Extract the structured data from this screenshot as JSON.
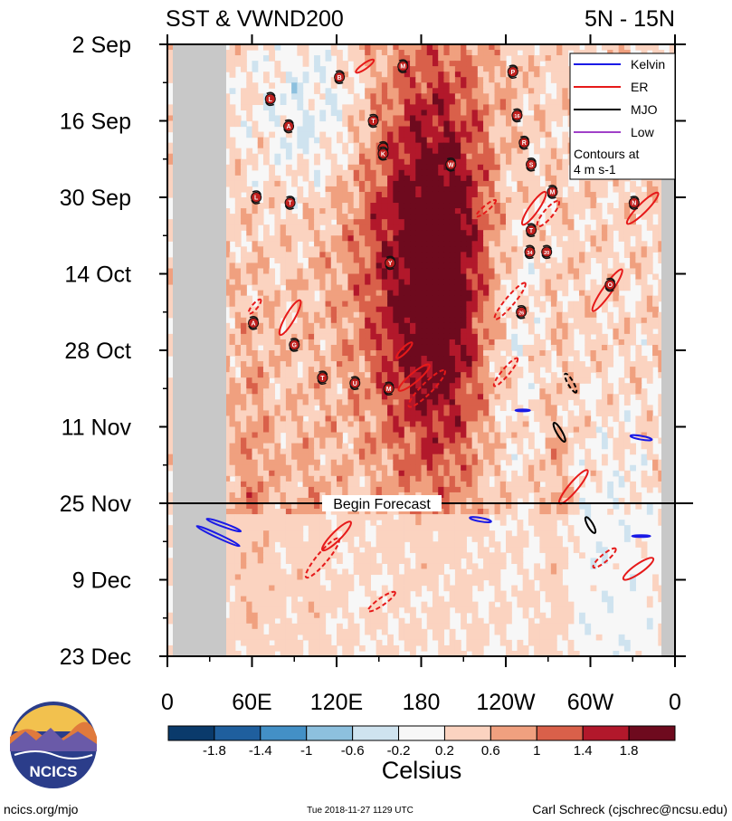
{
  "chart_data": {
    "type": "heatmap",
    "title": "SST & VWND200",
    "region": "5N - 15N",
    "y_ticks": [
      "2 Sep",
      "16 Sep",
      "30 Sep",
      "14 Oct",
      "28 Oct",
      "11 Nov",
      "25 Nov",
      "9 Dec",
      "23 Dec"
    ],
    "x_ticks": [
      "0",
      "60E",
      "120E",
      "180",
      "120W",
      "60W",
      "0"
    ],
    "x_range": [
      0,
      360
    ],
    "y_range_days": [
      0,
      112
    ],
    "forecast_label": "Begin Forecast",
    "forecast_day": 84,
    "colorbar": {
      "label": "Celsius",
      "ticks": [
        "-1.8",
        "-1.4",
        "-1",
        "-0.6",
        "-0.2",
        "0.2",
        "0.6",
        "1",
        "1.4",
        "1.8"
      ],
      "colors": [
        "#0a3a6b",
        "#1f5f9e",
        "#4390c6",
        "#8dc0de",
        "#cfe3ef",
        "#f7f7f7",
        "#fbd3c0",
        "#f0a07f",
        "#d9604a",
        "#b2182b",
        "#6e0a1e"
      ]
    },
    "legend": {
      "items": [
        {
          "name": "Kelvin",
          "color": "#1a1ae6"
        },
        {
          "name": "ER",
          "color": "#e61a1a"
        },
        {
          "name": "MJO",
          "color": "#000000"
        },
        {
          "name": "Low",
          "color": "#a040c8"
        }
      ],
      "note_line1": "Contours at",
      "note_line2": "4 m s-1"
    },
    "storms": [
      {
        "label": "B",
        "lon": 122,
        "day": 6
      },
      {
        "label": "M",
        "lon": 167,
        "day": 4
      },
      {
        "label": "P",
        "lon": 245,
        "day": 5
      },
      {
        "label": "L",
        "lon": 73,
        "day": 10
      },
      {
        "label": "A",
        "lon": 86,
        "day": 15
      },
      {
        "label": "T",
        "lon": 146,
        "day": 14
      },
      {
        "label": "16",
        "lon": 248,
        "day": 13
      },
      {
        "label": "28",
        "lon": 153,
        "day": 19
      },
      {
        "label": "K",
        "lon": 153,
        "day": 20
      },
      {
        "label": "R",
        "lon": 253,
        "day": 18
      },
      {
        "label": "W",
        "lon": 201,
        "day": 22
      },
      {
        "label": "S",
        "lon": 258,
        "day": 22
      },
      {
        "label": "L",
        "lon": 63,
        "day": 28
      },
      {
        "label": "T",
        "lon": 87,
        "day": 29
      },
      {
        "label": "M",
        "lon": 273,
        "day": 27
      },
      {
        "label": "N",
        "lon": 331,
        "day": 29
      },
      {
        "label": "T",
        "lon": 258,
        "day": 34
      },
      {
        "label": "34",
        "lon": 257,
        "day": 38
      },
      {
        "label": "20",
        "lon": 269,
        "day": 38
      },
      {
        "label": "Y",
        "lon": 158,
        "day": 40
      },
      {
        "label": "O",
        "lon": 314,
        "day": 44
      },
      {
        "label": "26",
        "lon": 251,
        "day": 49
      },
      {
        "label": "A",
        "lon": 61,
        "day": 51
      },
      {
        "label": "G",
        "lon": 90,
        "day": 55
      },
      {
        "label": "T",
        "lon": 110,
        "day": 61
      },
      {
        "label": "U",
        "lon": 133,
        "day": 62
      },
      {
        "label": "M",
        "lon": 157,
        "day": 63
      }
    ]
  },
  "footer": {
    "logo_text": "NCICS",
    "site": "ncics.org/mjo",
    "timestamp": "Tue 2018-11-27 1129 UTC",
    "author": "Carl Schreck (cjschrec@ncsu.edu)"
  }
}
